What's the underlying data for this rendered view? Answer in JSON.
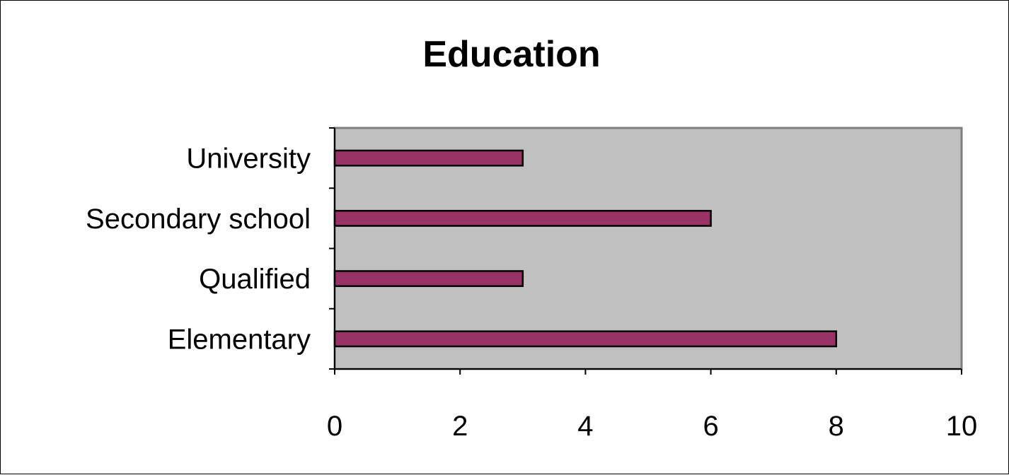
{
  "chart_data": {
    "type": "bar",
    "orientation": "horizontal",
    "title": "Education",
    "categories": [
      "Elementary",
      "Qualified",
      "Secondary school",
      "University"
    ],
    "values": [
      8,
      3,
      6,
      3
    ],
    "xlim": [
      0,
      10
    ],
    "x_ticks": [
      "0",
      "2",
      "4",
      "6",
      "8",
      "10"
    ],
    "grid": false,
    "legend": "none",
    "colors": {
      "bar_fill": "#993366",
      "bar_stroke": "#000000",
      "plot_background": "#c0c0c0",
      "plot_border": "#808080"
    }
  }
}
